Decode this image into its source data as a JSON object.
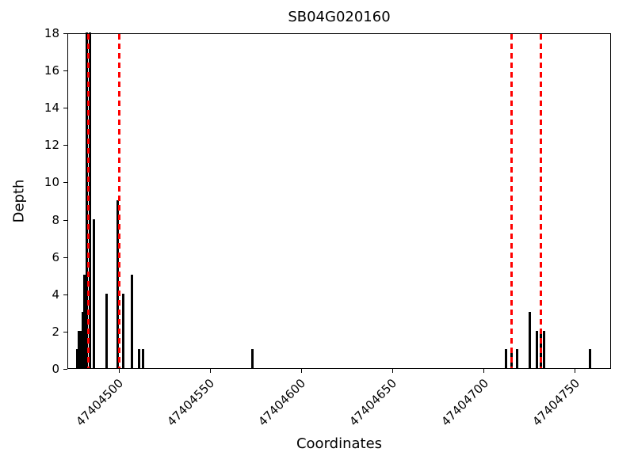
{
  "chart_data": {
    "type": "bar",
    "title": "SB04G020160",
    "xlabel": "Coordinates",
    "ylabel": "Depth",
    "xlim": [
      47404472,
      47404770
    ],
    "ylim": [
      0,
      18
    ],
    "yticks": [
      0,
      2,
      4,
      6,
      8,
      10,
      12,
      14,
      16,
      18
    ],
    "xticks": [
      47404500,
      47404550,
      47404600,
      47404650,
      47404700,
      47404750
    ],
    "grid": false,
    "legend": "none",
    "colors": {
      "bar": "#000000",
      "vline": "#ff0000",
      "axis": "#000000",
      "background": "#ffffff"
    },
    "vlines": [
      47404483,
      47404500,
      47404715,
      47404731
    ],
    "bars": [
      {
        "x": 47404477,
        "depth": 1
      },
      {
        "x": 47404478,
        "depth": 2
      },
      {
        "x": 47404479,
        "depth": 2
      },
      {
        "x": 47404480,
        "depth": 3
      },
      {
        "x": 47404481,
        "depth": 5
      },
      {
        "x": 47404482,
        "depth": 18
      },
      {
        "x": 47404484,
        "depth": 18
      },
      {
        "x": 47404486,
        "depth": 8
      },
      {
        "x": 47404493,
        "depth": 4
      },
      {
        "x": 47404499,
        "depth": 9
      },
      {
        "x": 47404502,
        "depth": 4
      },
      {
        "x": 47404507,
        "depth": 5
      },
      {
        "x": 47404511,
        "depth": 1
      },
      {
        "x": 47404513,
        "depth": 1
      },
      {
        "x": 47404573,
        "depth": 1
      },
      {
        "x": 47404712,
        "depth": 1
      },
      {
        "x": 47404715,
        "depth": 1
      },
      {
        "x": 47404718,
        "depth": 1
      },
      {
        "x": 47404725,
        "depth": 3
      },
      {
        "x": 47404729,
        "depth": 2
      },
      {
        "x": 47404731,
        "depth": 2
      },
      {
        "x": 47404733,
        "depth": 2
      },
      {
        "x": 47404758,
        "depth": 1
      }
    ]
  }
}
